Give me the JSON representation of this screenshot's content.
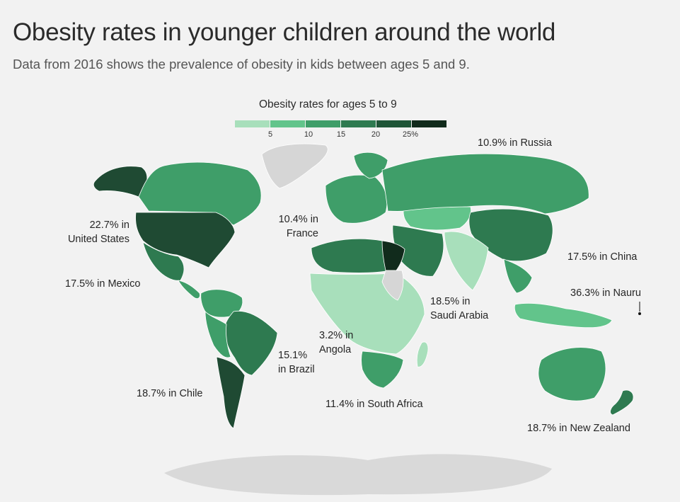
{
  "header": {
    "title": "Obesity rates in younger children around the world",
    "subtitle": "Data from 2016 shows the prevalence of obesity in kids between ages 5 and 9."
  },
  "legend": {
    "title": "Obesity rates for ages 5 to 9",
    "ticks": [
      "5",
      "10",
      "15",
      "20",
      "25%"
    ],
    "colors": [
      "#a8dfbb",
      "#62c48b",
      "#3f9e69",
      "#2e7a50",
      "#1f5537",
      "#112b1c"
    ]
  },
  "colors": {
    "background": "#f2f2f2",
    "no_data": "#d6d6d6",
    "border": "#ffffff"
  },
  "annotations": {
    "russia": "10.9% in Russia",
    "us_line1": "22.7% in",
    "us_line2": "United States",
    "france_line1": "10.4% in",
    "france_line2": "France",
    "china": "17.5% in China",
    "mexico": "17.5% in Mexico",
    "saudi_line1": "18.5% in",
    "saudi_line2": "Saudi Arabia",
    "nauru": "36.3% in Nauru",
    "angola_line1": "3.2% in",
    "angola_line2": "Angola",
    "brazil_line1": "15.1%",
    "brazil_line2": "in Brazil",
    "chile": "18.7% in Chile",
    "south_africa": "11.4% in South Africa",
    "new_zealand": "18.7% in New Zealand"
  },
  "regions": [
    {
      "name": "Russia",
      "value": 10.9
    },
    {
      "name": "United States",
      "value": 22.7
    },
    {
      "name": "France",
      "value": 10.4
    },
    {
      "name": "China",
      "value": 17.5
    },
    {
      "name": "Mexico",
      "value": 17.5
    },
    {
      "name": "Saudi Arabia",
      "value": 18.5
    },
    {
      "name": "Nauru",
      "value": 36.3
    },
    {
      "name": "Angola",
      "value": 3.2
    },
    {
      "name": "Brazil",
      "value": 15.1
    },
    {
      "name": "Chile",
      "value": 18.7
    },
    {
      "name": "South Africa",
      "value": 11.4
    },
    {
      "name": "New Zealand",
      "value": 18.7
    }
  ]
}
